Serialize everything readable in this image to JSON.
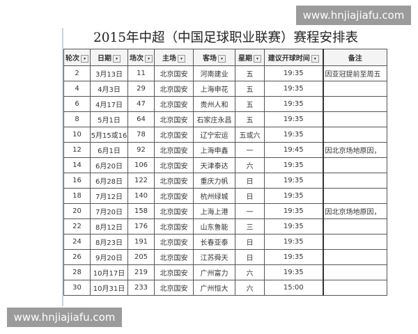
{
  "watermark": "www.hnjiajiafu.com",
  "title": "2015年中超（中国足球职业联赛）赛程安排表",
  "headers": [
    "轮次",
    "日期",
    "场次",
    "主场",
    "客场",
    "星期",
    "建议开球时间",
    "备注"
  ],
  "rows": [
    [
      "2",
      "3月13日",
      "11",
      "北京国安",
      "河南建业",
      "五",
      "19:35",
      "因亚冠提前至周五"
    ],
    [
      "4",
      "4月3日",
      "29",
      "北京国安",
      "上海申花",
      "五",
      "19:35",
      ""
    ],
    [
      "6",
      "4月17日",
      "47",
      "北京国安",
      "贵州人和",
      "五",
      "19:35",
      ""
    ],
    [
      "8",
      "5月1日",
      "64",
      "北京国安",
      "石家庄永昌",
      "五",
      "19:35",
      ""
    ],
    [
      "10",
      "5月15或16",
      "78",
      "北京国安",
      "辽宁宏运",
      "五或六",
      "19:35",
      ""
    ],
    [
      "12",
      "6月1日",
      "92",
      "北京国安",
      "上海申鑫",
      "一",
      "19:45",
      "因北京场地原因，"
    ],
    [
      "14",
      "6月20日",
      "106",
      "北京国安",
      "天津泰达",
      "六",
      "19:35",
      ""
    ],
    [
      "16",
      "6月28日",
      "122",
      "北京国安",
      "重庆力帆",
      "日",
      "19:35",
      ""
    ],
    [
      "18",
      "7月12日",
      "140",
      "北京国安",
      "杭州绿城",
      "日",
      "19:35",
      ""
    ],
    [
      "20",
      "7月20日",
      "158",
      "北京国安",
      "上海上港",
      "一",
      "19:35",
      "因北京场地原因，"
    ],
    [
      "22",
      "8月12日",
      "176",
      "北京国安",
      "山东鲁能",
      "三",
      "19:35",
      ""
    ],
    [
      "24",
      "8月23日",
      "191",
      "北京国安",
      "长春亚泰",
      "日",
      "19:35",
      ""
    ],
    [
      "26",
      "9月20日",
      "205",
      "北京国安",
      "江苏舜天",
      "日",
      "19:35",
      ""
    ],
    [
      "28",
      "10月17日",
      "219",
      "北京国安",
      "广州富力",
      "六",
      "19:35",
      ""
    ],
    [
      "30",
      "10月31日",
      "233",
      "北京国安",
      "广州恒大",
      "六",
      "15:00",
      ""
    ]
  ]
}
